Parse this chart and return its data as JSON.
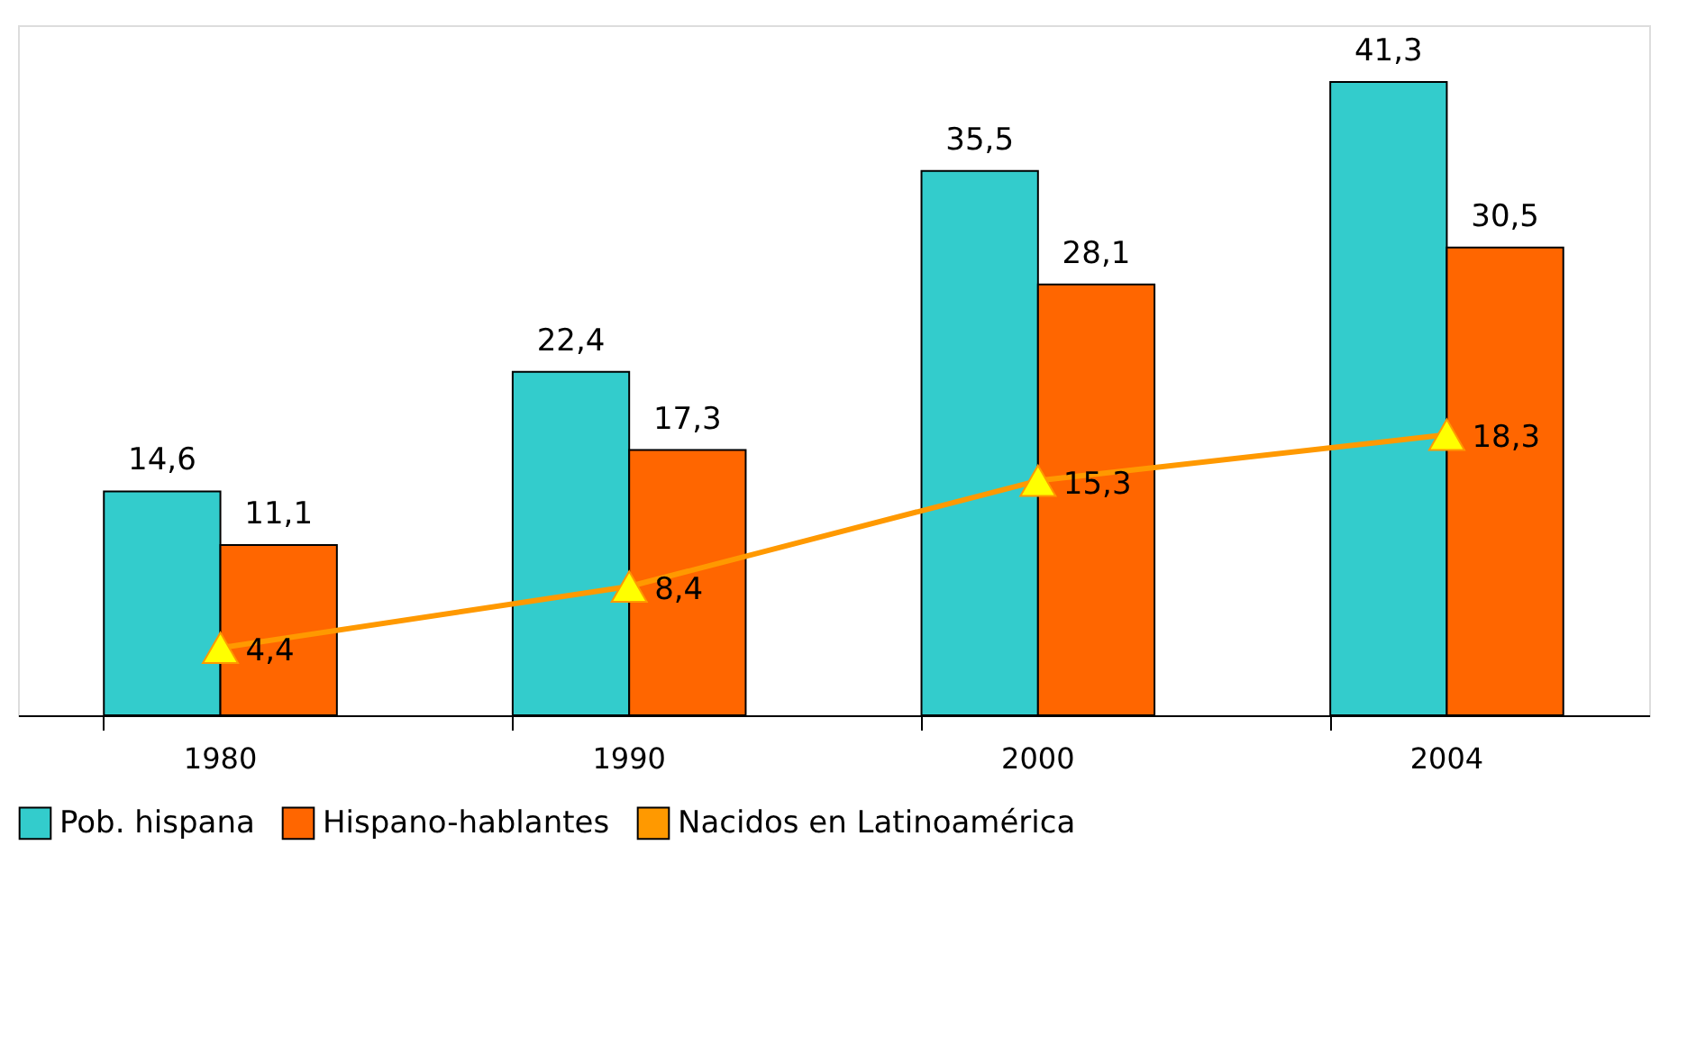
{
  "chart_data": {
    "type": "bar",
    "categories": [
      "1980",
      "1990",
      "2000",
      "2004"
    ],
    "series": [
      {
        "name": "Pob. hispana",
        "color": "#33cccc",
        "values": [
          14.6,
          22.4,
          35.5,
          41.3
        ],
        "value_labels": [
          "14,6",
          "22,4",
          "35,5",
          "41,3"
        ]
      },
      {
        "name": "Hispano-hablantes",
        "color": "#ff6600",
        "values": [
          11.1,
          17.3,
          28.1,
          30.5
        ],
        "value_labels": [
          "11,1",
          "17,3",
          "28,1",
          "30,5"
        ]
      },
      {
        "name": "Nacidos en Latinoamérica",
        "type": "line",
        "color": "#ff9900",
        "marker": "triangle",
        "values": [
          4.4,
          8.4,
          15.3,
          18.3
        ],
        "value_labels": [
          "4,4",
          "8,4",
          "15,3",
          "18,3"
        ]
      }
    ],
    "legend": "bottom",
    "grid": false
  }
}
